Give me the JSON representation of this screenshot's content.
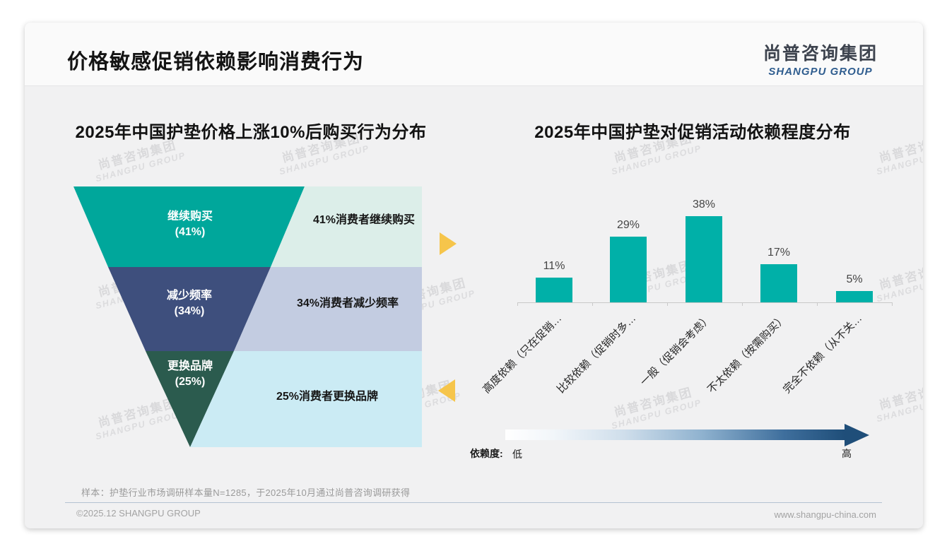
{
  "slide": {
    "title": "价格敏感促销依赖影响消费行为",
    "logo": {
      "cn": "尚普咨询集团",
      "en": "SHANGPU GROUP"
    },
    "watermark": {
      "line1": "尚普咨询集团",
      "line2": "SHANGPU GROUP"
    },
    "sample_note": "样本：护垫行业市场调研样本量N=1285，于2025年10月通过尚普咨询调研获得",
    "footer": {
      "left": "©2025.12 SHANGPU GROUP",
      "right": "www.shangpu-china.com"
    },
    "accent_colors": {
      "arrow_yellow": "#f6c54b",
      "gradient_dark_blue": "#1f4e79"
    }
  },
  "chart_data": [
    {
      "type": "funnel",
      "title": "2025年中国护垫价格上涨10%后购买行为分布",
      "categories": [
        "继续购买",
        "减少频率",
        "更换品牌"
      ],
      "values": [
        41,
        34,
        25
      ],
      "labels": [
        "(41%)",
        "(34%)",
        "(25%)"
      ],
      "annotations": [
        "41%消费者继续购买",
        "34%消费者减少频率",
        "25%消费者更换品牌"
      ],
      "segment_colors": [
        "#00a79b",
        "#3e4f7d",
        "#2b5b4e"
      ],
      "panel_colors": [
        "#dceee9",
        "#c3cce1",
        "#cbebf4"
      ]
    },
    {
      "type": "bar",
      "title": "2025年中国护垫对促销活动依赖程度分布",
      "categories": [
        "高度依赖（只在促销…",
        "比较依赖（促销时多…",
        "一般（促销会考虑）",
        "不太依赖（按需购买）",
        "完全不依赖（从不关…"
      ],
      "values": [
        11,
        29,
        38,
        17,
        5
      ],
      "value_labels": [
        "11%",
        "29%",
        "38%",
        "17%",
        "5%"
      ],
      "bar_color": "#00b0a8",
      "ylim": [
        0,
        40
      ],
      "grid": false,
      "axis": {
        "legend_label": "依赖度:",
        "low": "低",
        "high": "高"
      }
    }
  ]
}
